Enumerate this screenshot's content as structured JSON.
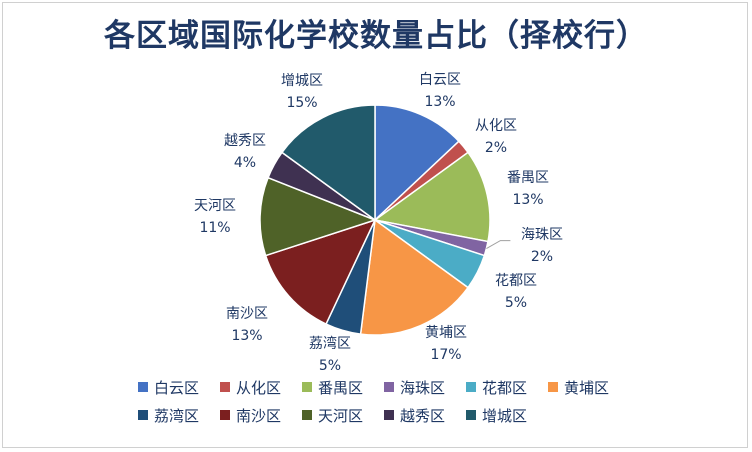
{
  "chart_data": {
    "type": "pie",
    "title": "各区域国际化学校数量占比（择校行）",
    "start_angle_deg": 0,
    "direction": "clockwise",
    "legend_position": "bottom",
    "slices": [
      {
        "name": "白云区",
        "value": 13,
        "label": "13%",
        "color": "#4472c4"
      },
      {
        "name": "从化区",
        "value": 2,
        "label": "2%",
        "color": "#c0504d"
      },
      {
        "name": "番禺区",
        "value": 13,
        "label": "13%",
        "color": "#9bbb59"
      },
      {
        "name": "海珠区",
        "value": 2,
        "label": "2%",
        "color": "#8064a2"
      },
      {
        "name": "花都区",
        "value": 5,
        "label": "5%",
        "color": "#4bacc6"
      },
      {
        "name": "黄埔区",
        "value": 17,
        "label": "17%",
        "color": "#f79646"
      },
      {
        "name": "荔湾区",
        "value": 5,
        "label": "5%",
        "color": "#1f4e79"
      },
      {
        "name": "南沙区",
        "value": 13,
        "label": "13%",
        "color": "#7b1f1f"
      },
      {
        "name": "天河区",
        "value": 11,
        "label": "11%",
        "color": "#4f6228"
      },
      {
        "name": "越秀区",
        "value": 4,
        "label": "4%",
        "color": "#3f3151"
      },
      {
        "name": "增城区",
        "value": 15,
        "label": "15%",
        "color": "#215a6b"
      }
    ]
  }
}
